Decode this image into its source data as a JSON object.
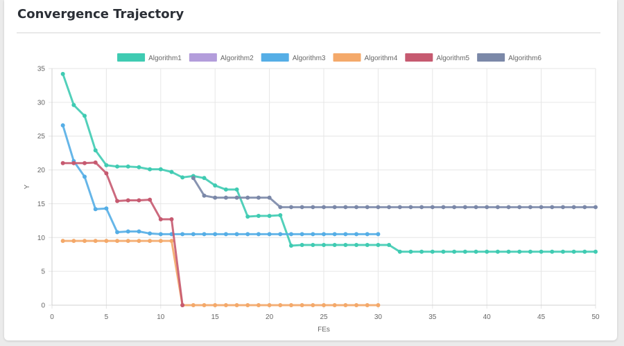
{
  "page": {
    "title": "Convergence Trajectory"
  },
  "chart_data": {
    "type": "line",
    "xlabel": "FEs",
    "ylabel": "Y",
    "xlim": [
      0,
      50
    ],
    "ylim": [
      0,
      35
    ],
    "xticks": [
      0,
      5,
      10,
      15,
      20,
      25,
      30,
      35,
      40,
      45,
      50
    ],
    "yticks": [
      0,
      5,
      10,
      15,
      20,
      25,
      30,
      35
    ],
    "grid": true,
    "legend_position": "top",
    "series": [
      {
        "name": "Algorithm1",
        "color": "#3fcbb2",
        "x": [
          1,
          2,
          3,
          4,
          5,
          6,
          7,
          8,
          9,
          10,
          11,
          12,
          13,
          14,
          15,
          16,
          17,
          18,
          19,
          20,
          21,
          22,
          23,
          24,
          25,
          26,
          27,
          28,
          29,
          30,
          31,
          32,
          33,
          34,
          35,
          36,
          37,
          38,
          39,
          40,
          41,
          42,
          43,
          44,
          45,
          46,
          47,
          48,
          49,
          50
        ],
        "y": [
          34.2,
          29.6,
          28,
          22.9,
          20.7,
          20.5,
          20.5,
          20.4,
          20.1,
          20.1,
          19.7,
          18.9,
          19.1,
          18.8,
          17.7,
          17.1,
          17.1,
          13.1,
          13.2,
          13.2,
          13.3,
          8.8,
          8.9,
          8.9,
          8.9,
          8.9,
          8.9,
          8.9,
          8.9,
          8.9,
          8.9,
          7.9,
          7.9,
          7.9,
          7.9,
          7.9,
          7.9,
          7.9,
          7.9,
          7.9,
          7.9,
          7.9,
          7.9,
          7.9,
          7.9,
          7.9,
          7.9,
          7.9,
          7.9,
          7.9
        ]
      },
      {
        "name": "Algorithm2",
        "color": "#b39ddb",
        "x": [],
        "y": []
      },
      {
        "name": "Algorithm3",
        "color": "#55aee6",
        "x": [
          1,
          2,
          3,
          4,
          5,
          6,
          7,
          8,
          9,
          10,
          11,
          12,
          13,
          14,
          15,
          16,
          17,
          18,
          19,
          20,
          21,
          22,
          23,
          24,
          25,
          26,
          27,
          28,
          29,
          30
        ],
        "y": [
          26.6,
          21.3,
          19,
          14.2,
          14.3,
          10.8,
          10.9,
          10.9,
          10.6,
          10.5,
          10.5,
          10.5,
          10.5,
          10.5,
          10.5,
          10.5,
          10.5,
          10.5,
          10.5,
          10.5,
          10.5,
          10.5,
          10.5,
          10.5,
          10.5,
          10.5,
          10.5,
          10.5,
          10.5,
          10.5
        ]
      },
      {
        "name": "Algorithm4",
        "color": "#f4a96a",
        "x": [
          1,
          2,
          3,
          4,
          5,
          6,
          7,
          8,
          9,
          10,
          11,
          12,
          13,
          14,
          15,
          16,
          17,
          18,
          19,
          20,
          21,
          22,
          23,
          24,
          25,
          26,
          27,
          28,
          29,
          30
        ],
        "y": [
          9.5,
          9.5,
          9.5,
          9.5,
          9.5,
          9.5,
          9.5,
          9.5,
          9.5,
          9.5,
          9.5,
          0,
          0,
          0,
          0,
          0,
          0,
          0,
          0,
          0,
          0,
          0,
          0,
          0,
          0,
          0,
          0,
          0,
          0,
          0
        ]
      },
      {
        "name": "Algorithm5",
        "color": "#c65a70",
        "x": [
          1,
          2,
          3,
          4,
          5,
          6,
          7,
          8,
          9,
          10,
          11,
          12
        ],
        "y": [
          21,
          21,
          21,
          21.1,
          19.5,
          15.4,
          15.5,
          15.5,
          15.6,
          12.7,
          12.7,
          0
        ]
      },
      {
        "name": "Algorithm6",
        "color": "#7b88a8",
        "x": [
          13,
          14,
          15,
          16,
          17,
          18,
          19,
          20,
          21,
          22,
          23,
          24,
          25,
          26,
          27,
          28,
          29,
          30,
          31,
          32,
          33,
          34,
          35,
          36,
          37,
          38,
          39,
          40,
          41,
          42,
          43,
          44,
          45,
          46,
          47,
          48,
          49,
          50
        ],
        "y": [
          18.8,
          16.2,
          15.9,
          15.9,
          15.9,
          15.9,
          15.9,
          15.9,
          14.5,
          14.5,
          14.5,
          14.5,
          14.5,
          14.5,
          14.5,
          14.5,
          14.5,
          14.5,
          14.5,
          14.5,
          14.5,
          14.5,
          14.5,
          14.5,
          14.5,
          14.5,
          14.5,
          14.5,
          14.5,
          14.5,
          14.5,
          14.5,
          14.5,
          14.5,
          14.5,
          14.5,
          14.5,
          14.5
        ]
      }
    ]
  }
}
